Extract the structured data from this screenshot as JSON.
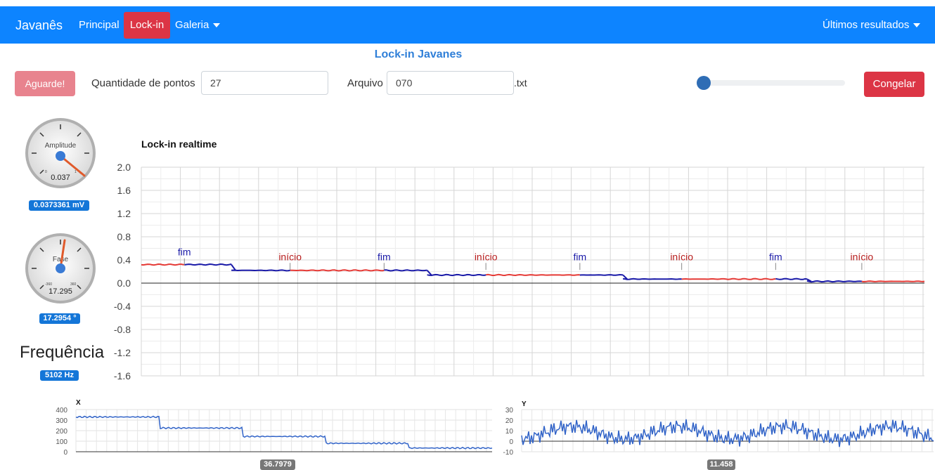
{
  "navbar": {
    "brand": "Javanês",
    "items": [
      {
        "label": "Principal"
      },
      {
        "label": "Lock-in"
      },
      {
        "label": "Galeria"
      }
    ],
    "right_menu": "Últimos resultados",
    "color": "#0d84ff",
    "active_color": "#dc3545"
  },
  "page_title": "Lock-in Javanes",
  "toolbar": {
    "wait_button": "Aguarde!",
    "points_label": "Quantidade de pontos",
    "points_value": "27",
    "file_label": "Arquivo",
    "file_value": "070",
    "file_ext": ".txt",
    "slider_value": 0,
    "freeze_button": "Congelar"
  },
  "gauges": {
    "amplitude": {
      "label": "Amplitude",
      "display": "0.037",
      "badge": "0.0373361 mV",
      "min_tick": "0",
      "max_tick": "1"
    },
    "phase": {
      "label": "Fase",
      "display": "17.295",
      "badge": "17.2954 °",
      "min_tick": "-360",
      "max_tick": "360"
    }
  },
  "frequency": {
    "label": "Frequência",
    "badge": "5102 Hz"
  },
  "chart_data": [
    {
      "type": "line",
      "title": "Lock-in realtime",
      "ylim": [
        -1.6,
        2.0
      ],
      "yticks": [
        "2.0",
        "1.6",
        "1.2",
        "0.8",
        "0.4",
        "0.0",
        "-0.4",
        "-0.8",
        "-1.2",
        "-1.6"
      ],
      "grid": true,
      "series": [
        {
          "color": "#e53935",
          "segments": [
            {
              "x": [
                0,
                11
              ],
              "y": 0.32
            },
            {
              "x": [
                38,
                62
              ],
              "y": 0.22
            },
            {
              "x": [
                88,
                112
              ],
              "y": 0.14
            },
            {
              "x": [
                138,
                162
              ],
              "y": 0.07
            },
            {
              "x": [
                184,
                200
              ],
              "y": 0.03
            }
          ]
        },
        {
          "color": "#1a1aa8",
          "segments": [
            {
              "x": [
                11,
                23
              ],
              "y": 0.32
            },
            {
              "x": [
                23,
                38
              ],
              "y": 0.22
            },
            {
              "x": [
                62,
                73
              ],
              "y": 0.22
            },
            {
              "x": [
                73,
                88
              ],
              "y": 0.14
            },
            {
              "x": [
                112,
                123
              ],
              "y": 0.14
            },
            {
              "x": [
                123,
                138
              ],
              "y": 0.07
            },
            {
              "x": [
                162,
                170
              ],
              "y": 0.07
            },
            {
              "x": [
                170,
                184
              ],
              "y": 0.03
            }
          ]
        }
      ],
      "annotations": [
        {
          "text": "fim",
          "x": 11,
          "color": "#1a1aa8"
        },
        {
          "text": "início",
          "x": 38,
          "color": "#b71c1c"
        },
        {
          "text": "fim",
          "x": 62,
          "color": "#1a1aa8"
        },
        {
          "text": "início",
          "x": 88,
          "color": "#b71c1c"
        },
        {
          "text": "fim",
          "x": 112,
          "color": "#1a1aa8"
        },
        {
          "text": "início",
          "x": 138,
          "color": "#b71c1c"
        },
        {
          "text": "fim",
          "x": 162,
          "color": "#1a1aa8"
        },
        {
          "text": "início",
          "x": 184,
          "color": "#b71c1c"
        }
      ]
    },
    {
      "type": "line",
      "title": "X",
      "ylim": [
        0,
        400
      ],
      "yticks": [
        "400",
        "300",
        "200",
        "100",
        "0"
      ],
      "steps": [
        330,
        225,
        145,
        80,
        35
      ],
      "badge": "36.7979",
      "color": "#3264c8"
    },
    {
      "type": "line",
      "title": "Y",
      "ylim": [
        -10,
        30
      ],
      "yticks": [
        "30",
        "20",
        "10",
        "0",
        "-10"
      ],
      "mean": 8,
      "badge": "11.458",
      "color": "#3264c8"
    }
  ]
}
